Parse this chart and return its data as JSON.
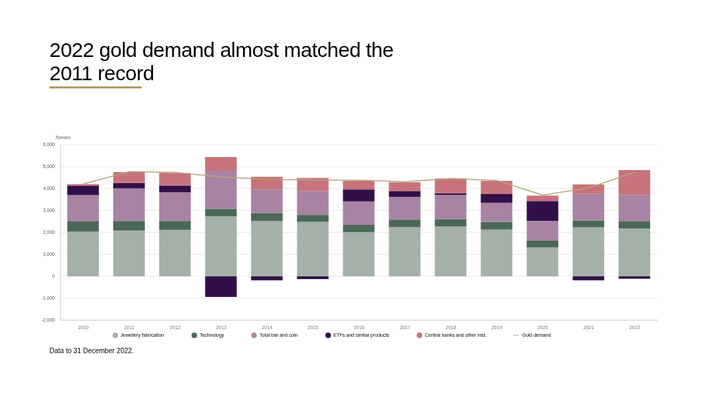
{
  "chart_data": {
    "type": "bar",
    "title": "2022 gold demand almost matched the 2011 record",
    "ylabel": "Tonnes",
    "categories": [
      "2010",
      "2011",
      "2012",
      "2013",
      "2014",
      "2015",
      "2016",
      "2017",
      "2018",
      "2019",
      "2020",
      "2021",
      "2022"
    ],
    "series": [
      {
        "name": "Jewellery fabrication",
        "color": "#a3b1a8",
        "values": [
          2040,
          2090,
          2120,
          2730,
          2530,
          2480,
          2010,
          2240,
          2280,
          2130,
          1320,
          2230,
          2180
        ]
      },
      {
        "name": "Technology",
        "color": "#4a6858",
        "values": [
          460,
          430,
          400,
          350,
          350,
          320,
          330,
          340,
          330,
          350,
          300,
          310,
          320
        ]
      },
      {
        "name": "Total bar and coin",
        "color": "#a883a3",
        "values": [
          1200,
          1490,
          1310,
          1730,
          1080,
          1090,
          1070,
          1040,
          1100,
          870,
          910,
          1220,
          1210
        ]
      },
      {
        "name": "ETFs and similar products",
        "color": "#31104a",
        "values": [
          420,
          250,
          310,
          -940,
          -180,
          -130,
          550,
          270,
          80,
          400,
          900,
          -180,
          -110
        ]
      },
      {
        "name": "Central banks and other inst.",
        "color": "#c8737a",
        "values": [
          80,
          490,
          570,
          630,
          580,
          590,
          390,
          400,
          670,
          600,
          250,
          430,
          1130
        ]
      },
      {
        "name": "Gold demand",
        "type": "line",
        "color": "#b8a57e",
        "values": [
          4210,
          4770,
          4730,
          4530,
          4420,
          4390,
          4380,
          4310,
          4460,
          4370,
          3700,
          4030,
          4750
        ]
      }
    ],
    "stacked": true,
    "ylim": [
      -2000,
      6000
    ],
    "yticks": [
      {
        "value": -2000,
        "label": "-2,000"
      },
      {
        "value": -1000,
        "label": "-1,000"
      },
      0,
      {
        "value": 1000,
        "label": "1,000"
      },
      {
        "value": 2000,
        "label": "2,000"
      },
      {
        "value": 3000,
        "label": "3,000"
      },
      {
        "value": 4000,
        "label": "4,000"
      },
      {
        "value": 5000,
        "label": "5,000"
      },
      {
        "value": 6000,
        "label": "6,000"
      }
    ],
    "grid": "y",
    "legend": "bottom",
    "marker": "none",
    "annotations": [
      "Data to 31 December 2022."
    ]
  }
}
